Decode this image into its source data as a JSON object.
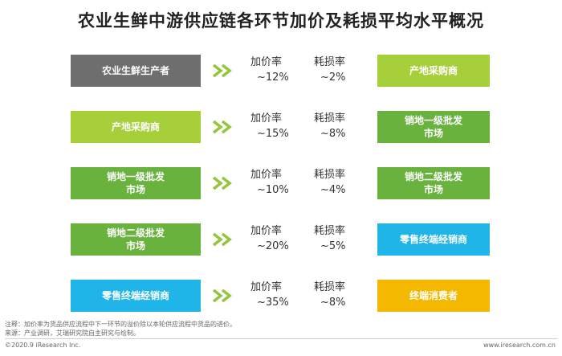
{
  "title": "农业生鲜中游供应链各环节加价及耗损平均水平概况",
  "colors": {
    "gray": "#6e6e6e",
    "lime": "#a7cf3a",
    "green": "#6ab23e",
    "cyan": "#1fb5e8",
    "amber": "#f5b800",
    "arrow": "#93c63b"
  },
  "metric_labels": {
    "markup": "加价率",
    "loss": "耗损率"
  },
  "rows": [
    {
      "from": "农业生鲜生产者",
      "from_color": "#6e6e6e",
      "markup": "~12%",
      "loss": "~2%",
      "to": "产地采购商",
      "to_color": "#a7cf3a"
    },
    {
      "from": "产地采购商",
      "from_color": "#a7cf3a",
      "markup": "~15%",
      "loss": "~8%",
      "to": "销地一级批发\n市场",
      "to_color": "#6ab23e"
    },
    {
      "from": "销地一级批发\n市场",
      "from_color": "#6ab23e",
      "markup": "~10%",
      "loss": "~4%",
      "to": "销地二级批发\n市场",
      "to_color": "#6ab23e"
    },
    {
      "from": "销地二级批发\n市场",
      "from_color": "#6ab23e",
      "markup": "~20%",
      "loss": "~5%",
      "to": "零售终端经销商",
      "to_color": "#1fb5e8"
    },
    {
      "from": "零售终端经销商",
      "from_color": "#1fb5e8",
      "markup": "~35%",
      "loss": "~8%",
      "to": "终端消费者",
      "to_color": "#f5b800"
    }
  ],
  "notes": {
    "note1": "注释：加价率为货品供应流程中下一环节的溢价除以本轮供应流程中货品的进价。",
    "note2": "来源：产业调研，艾瑞研究院自主研究与绘制。"
  },
  "footer": {
    "copyright": "©2020.9 iResearch Inc.",
    "website": "www.iresearch.com.cn"
  }
}
